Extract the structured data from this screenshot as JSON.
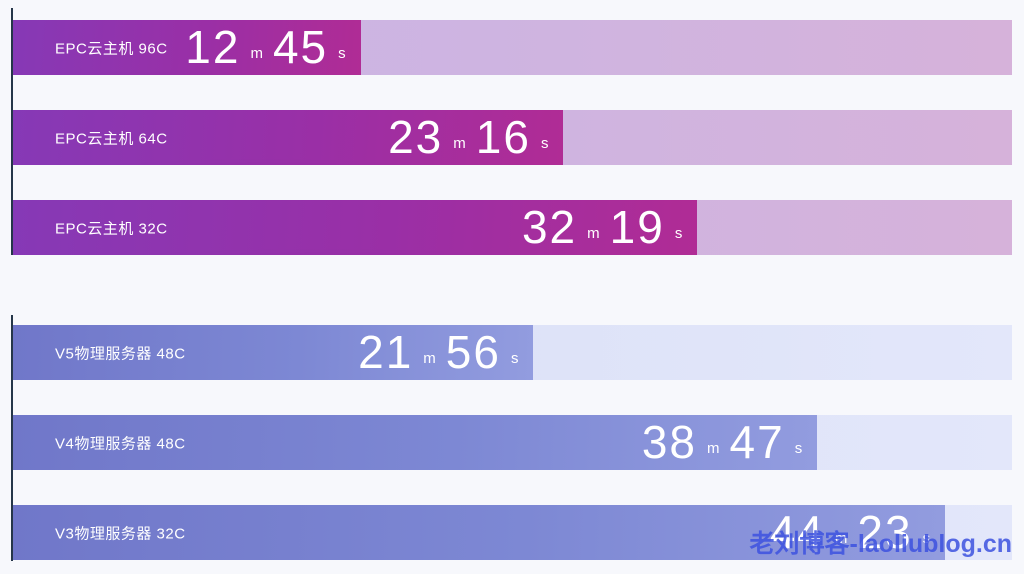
{
  "chart_data": {
    "type": "bar",
    "orientation": "horizontal",
    "title": "",
    "value_format": "{minutes} m {seconds} s",
    "units": {
      "minute": "m",
      "second": "s"
    },
    "axis": {
      "gridlines": false,
      "tick_labels": false
    },
    "groups": [
      {
        "name": "EPC云主机",
        "bars": [
          {
            "label": "EPC云主机 96C",
            "minutes": "12",
            "seconds": "45",
            "total_seconds": 765,
            "fill_percent": 34.8
          },
          {
            "label": "EPC云主机 64C",
            "minutes": "23",
            "seconds": "16",
            "total_seconds": 1396,
            "fill_percent": 55.1
          },
          {
            "label": "EPC云主机 32C",
            "minutes": "32",
            "seconds": "19",
            "total_seconds": 1939,
            "fill_percent": 68.5
          }
        ]
      },
      {
        "name": "物理服务器",
        "bars": [
          {
            "label": "V5物理服务器 48C",
            "minutes": "21",
            "seconds": "56",
            "total_seconds": 1316,
            "fill_percent": 52.1
          },
          {
            "label": "V4物理服务器 48C",
            "minutes": "38",
            "seconds": "47",
            "total_seconds": 2327,
            "fill_percent": 80.5
          },
          {
            "label": "V3物理服务器 32C",
            "minutes": "44",
            "seconds": "23",
            "total_seconds": 2663,
            "fill_percent": 93.3
          }
        ]
      }
    ]
  },
  "watermark": {
    "text": "老刘博客-laoliublog.cn",
    "color": "#3D52E0"
  },
  "colors": {
    "background": "#f7f8fc",
    "axis_line": "#253649",
    "epc_fill_start": "#8639b6",
    "epc_fill_mid": "#9a2fa6",
    "epc_fill_end": "#b02c95",
    "epc_track_start": "#c9b6e7",
    "epc_track_end": "#d6b2da",
    "phys_fill_start": "#7077c9",
    "phys_fill_end": "#929cdf",
    "phys_track_start": "#ccd4f3",
    "phys_track_end": "#e3e7fa",
    "bar_text": "#ffffff"
  }
}
